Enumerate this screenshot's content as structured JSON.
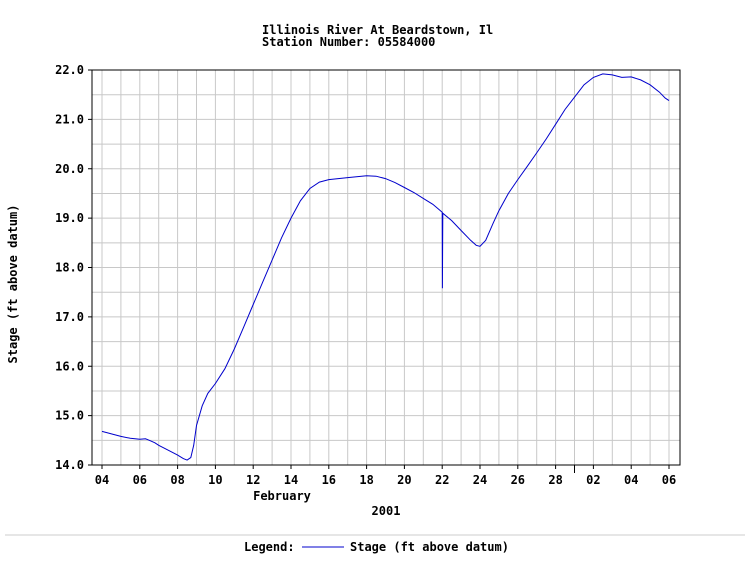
{
  "chart_data": {
    "type": "line",
    "title": "Illinois River At Beardstown, Il",
    "subtitle": "Station Number: 05584000",
    "ylabel": "Stage (ft above datum)",
    "xlabel_month": "February",
    "xlabel_year": "2001",
    "ylim": [
      14.0,
      22.0
    ],
    "y_ticks": [
      "14.0",
      "15.0",
      "16.0",
      "17.0",
      "18.0",
      "19.0",
      "20.0",
      "21.0",
      "22.0"
    ],
    "xlim": [
      0,
      30
    ],
    "x_ticks": [
      {
        "day": 0,
        "label": "04"
      },
      {
        "day": 2,
        "label": "06"
      },
      {
        "day": 4,
        "label": "08"
      },
      {
        "day": 6,
        "label": "10"
      },
      {
        "day": 8,
        "label": "12"
      },
      {
        "day": 10,
        "label": "14"
      },
      {
        "day": 12,
        "label": "16"
      },
      {
        "day": 14,
        "label": "18"
      },
      {
        "day": 16,
        "label": "20"
      },
      {
        "day": 18,
        "label": "22"
      },
      {
        "day": 20,
        "label": "24"
      },
      {
        "day": 22,
        "label": "26"
      },
      {
        "day": 24,
        "label": "28"
      },
      {
        "day": 26,
        "label": "02"
      },
      {
        "day": 28,
        "label": "04"
      },
      {
        "day": 30,
        "label": "06"
      }
    ],
    "month_boundary_day": 25,
    "grid": true,
    "legend_label": "Legend:",
    "series": [
      {
        "name": "Stage (ft above datum)",
        "color": "#0000cc",
        "points": [
          [
            0.0,
            14.68
          ],
          [
            0.3,
            14.65
          ],
          [
            0.6,
            14.62
          ],
          [
            1.0,
            14.58
          ],
          [
            1.5,
            14.54
          ],
          [
            2.0,
            14.52
          ],
          [
            2.3,
            14.53
          ],
          [
            2.5,
            14.5
          ],
          [
            2.8,
            14.45
          ],
          [
            3.0,
            14.4
          ],
          [
            3.5,
            14.3
          ],
          [
            4.0,
            14.2
          ],
          [
            4.3,
            14.13
          ],
          [
            4.5,
            14.1
          ],
          [
            4.7,
            14.15
          ],
          [
            4.85,
            14.4
          ],
          [
            5.0,
            14.8
          ],
          [
            5.3,
            15.2
          ],
          [
            5.6,
            15.45
          ],
          [
            6.0,
            15.65
          ],
          [
            6.5,
            15.95
          ],
          [
            7.0,
            16.35
          ],
          [
            7.5,
            16.8
          ],
          [
            8.0,
            17.25
          ],
          [
            8.5,
            17.7
          ],
          [
            9.0,
            18.15
          ],
          [
            9.5,
            18.6
          ],
          [
            10.0,
            19.0
          ],
          [
            10.5,
            19.35
          ],
          [
            11.0,
            19.6
          ],
          [
            11.5,
            19.73
          ],
          [
            12.0,
            19.78
          ],
          [
            13.0,
            19.82
          ],
          [
            14.0,
            19.86
          ],
          [
            14.5,
            19.85
          ],
          [
            15.0,
            19.8
          ],
          [
            15.5,
            19.72
          ],
          [
            16.0,
            19.62
          ],
          [
            16.5,
            19.52
          ],
          [
            17.0,
            19.4
          ],
          [
            17.5,
            19.28
          ],
          [
            18.0,
            19.12
          ],
          [
            18.01,
            17.58
          ],
          [
            18.03,
            19.1
          ],
          [
            18.5,
            18.95
          ],
          [
            19.0,
            18.75
          ],
          [
            19.5,
            18.55
          ],
          [
            19.8,
            18.45
          ],
          [
            20.0,
            18.43
          ],
          [
            20.3,
            18.55
          ],
          [
            20.7,
            18.9
          ],
          [
            21.0,
            19.15
          ],
          [
            21.5,
            19.5
          ],
          [
            22.0,
            19.78
          ],
          [
            22.5,
            20.05
          ],
          [
            23.0,
            20.32
          ],
          [
            23.5,
            20.6
          ],
          [
            24.0,
            20.9
          ],
          [
            24.5,
            21.2
          ],
          [
            25.0,
            21.45
          ],
          [
            25.5,
            21.7
          ],
          [
            26.0,
            21.85
          ],
          [
            26.5,
            21.92
          ],
          [
            27.0,
            21.9
          ],
          [
            27.5,
            21.85
          ],
          [
            28.0,
            21.86
          ],
          [
            28.5,
            21.8
          ],
          [
            29.0,
            21.7
          ],
          [
            29.5,
            21.55
          ],
          [
            29.8,
            21.43
          ],
          [
            30.0,
            21.38
          ]
        ]
      }
    ]
  }
}
